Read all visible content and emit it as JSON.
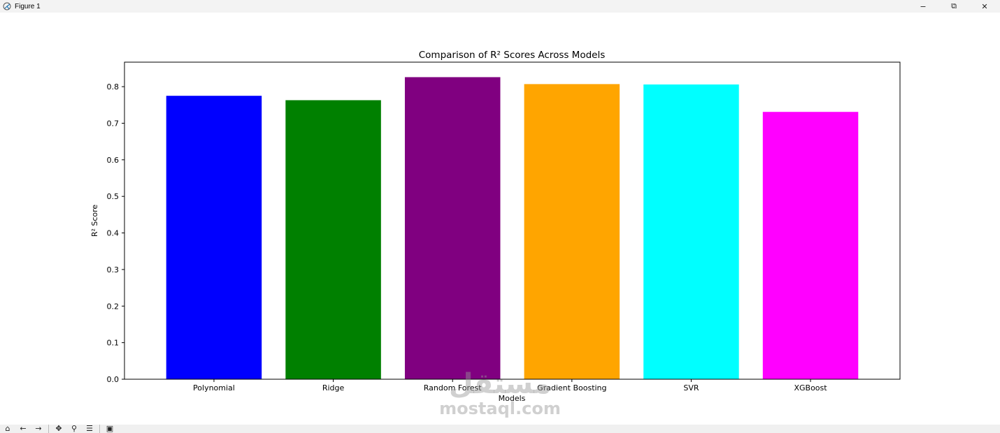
{
  "window": {
    "title": "Figure 1",
    "minimize_glyph": "−",
    "restore_glyph": "⧉",
    "close_glyph": "✕"
  },
  "toolbar": {
    "icons": [
      "home-icon",
      "back-icon",
      "forward-icon",
      "pan-icon",
      "zoom-icon",
      "configure-icon",
      "save-icon"
    ]
  },
  "watermark": {
    "arabic": "مستقل",
    "latin": "mostaql.com"
  },
  "chart_data": {
    "type": "bar",
    "title": "Comparison of R² Scores Across Models",
    "xlabel": "Models",
    "ylabel": "R² Score",
    "categories": [
      "Polynomial",
      "Ridge",
      "Random Forest",
      "Gradient Boosting",
      "SVR",
      "XGBoost"
    ],
    "values": [
      0.775,
      0.763,
      0.826,
      0.807,
      0.806,
      0.731
    ],
    "colors": [
      "#0000ff",
      "#008000",
      "#800080",
      "#ffa500",
      "#00ffff",
      "#ff00ff"
    ],
    "ylim": [
      0,
      0.867
    ],
    "yticks": [
      0.0,
      0.1,
      0.2,
      0.3,
      0.4,
      0.5,
      0.6,
      0.7,
      0.8
    ],
    "ytick_labels": [
      "0.0",
      "0.1",
      "0.2",
      "0.3",
      "0.4",
      "0.5",
      "0.6",
      "0.7",
      "0.8"
    ],
    "grid": false,
    "legend": "none"
  }
}
